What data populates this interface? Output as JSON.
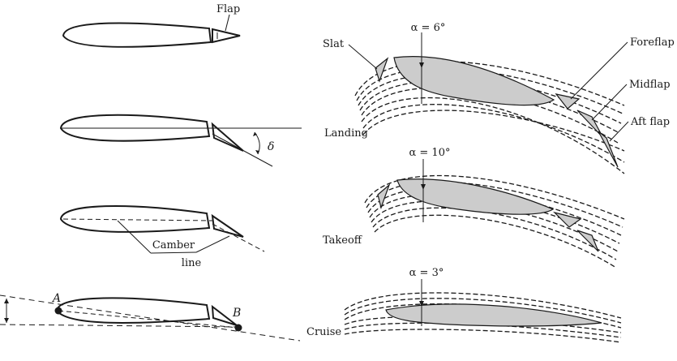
{
  "left_panel": {
    "flap_label": "Flap",
    "delta_symbol": "δ",
    "camber_label_line1": "Camber",
    "camber_label_line2": "line",
    "point_a": "A",
    "point_b": "B"
  },
  "right_panel": {
    "landing": {
      "alpha": "α = 6°",
      "config": "Landing",
      "slat": "Slat",
      "foreflap": "Foreflap",
      "midflap": "Midflap",
      "aft_flap": "Aft flap"
    },
    "takeoff": {
      "alpha": "α = 10°",
      "config": "Takeoff"
    },
    "cruise": {
      "alpha": "α = 3°",
      "config": "Cruise"
    }
  },
  "colors": {
    "line": "#1a1a1a",
    "airfoil_fill": "#cccccc",
    "background": "#ffffff"
  }
}
